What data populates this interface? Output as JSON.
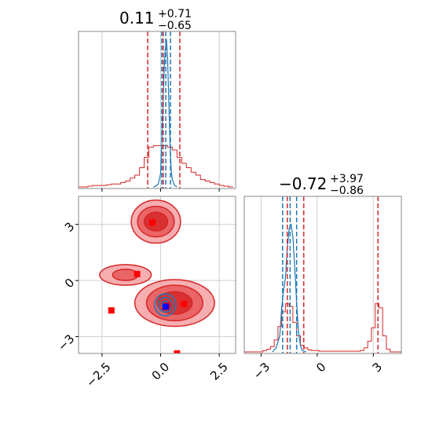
{
  "chart_data": {
    "type": "corner",
    "parameters": [
      "x",
      "y"
    ],
    "colors": {
      "red": "#d62728",
      "blue": "#1f77b4",
      "marker_red": "#ff0000",
      "marker_blue": "#0000ff",
      "grid": "#cfcfcf"
    },
    "grid": true,
    "x_range": [
      -3.5,
      3.2
    ],
    "y_range": [
      -3.9,
      4.5
    ],
    "x_ticks": [
      {
        "value": -2.5,
        "label": "−2.5"
      },
      {
        "value": 0.0,
        "label": "0.0"
      },
      {
        "value": 2.5,
        "label": "2.5"
      }
    ],
    "y_ticks": [
      {
        "value": -3,
        "label": "−3"
      },
      {
        "value": 0,
        "label": "0"
      },
      {
        "value": 3,
        "label": "3"
      }
    ],
    "marginal_x": {
      "title_main": "0.11",
      "title_sup": "+0.71",
      "title_sub": "−0.65",
      "red_quantile_lines": [
        -0.55,
        0.11,
        0.82
      ],
      "blue_quantile_lines": [
        0.05,
        0.22,
        0.42
      ],
      "red_hist_centers": [
        -3.4,
        -3.2,
        -3.0,
        -2.8,
        -2.6,
        -2.4,
        -2.2,
        -2.0,
        -1.8,
        -1.6,
        -1.4,
        -1.2,
        -1.0,
        -0.8,
        -0.6,
        -0.4,
        -0.2,
        0.0,
        0.2,
        0.4,
        0.6,
        0.8,
        1.0,
        1.2,
        1.4,
        1.6,
        1.8,
        2.0,
        2.2,
        2.4,
        2.6,
        2.8,
        3.0
      ],
      "red_hist_heights": [
        0,
        0,
        0.005,
        0.01,
        0.01,
        0.01,
        0.015,
        0.02,
        0.02,
        0.03,
        0.04,
        0.06,
        0.08,
        0.13,
        0.2,
        0.27,
        0.28,
        0.28,
        0.28,
        0.27,
        0.25,
        0.2,
        0.16,
        0.13,
        0.1,
        0.08,
        0.05,
        0.04,
        0.03,
        0.02,
        0.01,
        0.005,
        0
      ],
      "blue_x": [
        -0.3,
        -0.2,
        -0.1,
        0.0,
        0.05,
        0.1,
        0.15,
        0.2,
        0.25,
        0.3,
        0.35,
        0.4,
        0.45,
        0.5,
        0.6,
        0.7
      ],
      "blue_y": [
        0,
        0.005,
        0.02,
        0.09,
        0.3,
        0.55,
        0.8,
        0.93,
        1.0,
        0.86,
        0.58,
        0.3,
        0.12,
        0.05,
        0.01,
        0
      ]
    },
    "marginal_y": {
      "title_main": "−0.72",
      "title_sup": "+3.97",
      "title_sub": "−0.86",
      "red_quantile_lines": [
        -1.6,
        -0.72,
        3.25
      ],
      "blue_quantile_lines": [
        -1.85,
        -1.45,
        -1.1
      ],
      "red_hist_centers": [
        -3.8,
        -3.6,
        -3.4,
        -3.2,
        -3.0,
        -2.8,
        -2.6,
        -2.4,
        -2.2,
        -2.0,
        -1.8,
        -1.6,
        -1.4,
        -1.2,
        -1.0,
        -0.8,
        -0.6,
        -0.4,
        -0.2,
        0.0,
        0.2,
        0.4,
        0.6,
        0.8,
        1.0,
        1.2,
        1.4,
        1.6,
        1.8,
        2.0,
        2.2,
        2.4,
        2.6,
        2.8,
        3.0,
        3.2,
        3.4,
        3.6,
        3.8,
        4.0,
        4.2,
        4.4
      ],
      "red_hist_heights": [
        0,
        0,
        0,
        0,
        0,
        0.01,
        0.02,
        0.04,
        0.09,
        0.19,
        0.3,
        0.36,
        0.34,
        0.22,
        0.12,
        0.05,
        0.03,
        0.015,
        0.01,
        0.01,
        0.005,
        0.005,
        0.005,
        0.005,
        0.005,
        0.005,
        0.005,
        0.005,
        0.005,
        0.005,
        0.005,
        0.01,
        0.03,
        0.08,
        0.18,
        0.36,
        0.33,
        0.12,
        0.02,
        0,
        0,
        0
      ],
      "blue_x": [
        -2.4,
        -2.2,
        -2.0,
        -1.9,
        -1.8,
        -1.7,
        -1.6,
        -1.5,
        -1.4,
        -1.3,
        -1.2,
        -1.1,
        -1.0,
        -0.9,
        -0.8,
        -0.6
      ],
      "blue_y": [
        0,
        0.03,
        0.12,
        0.33,
        0.46,
        0.55,
        0.78,
        0.92,
        0.96,
        0.86,
        0.63,
        0.37,
        0.15,
        0.05,
        0.01,
        0
      ]
    },
    "joint": {
      "red_modes": [
        {
          "cx": -0.2,
          "cy": 3.15,
          "rx": [
            1.05,
            0.78,
            0.5
          ],
          "ry": [
            1.15,
            0.82,
            0.5
          ]
        },
        {
          "cx": 0.6,
          "cy": -1.2,
          "rx": [
            1.7,
            1.2,
            0.75
          ],
          "ry": [
            1.25,
            0.95,
            0.6
          ]
        },
        {
          "cx": -1.5,
          "cy": 0.3,
          "rx": [
            1.1,
            0.55,
            0.0
          ],
          "ry": [
            0.55,
            0.3,
            0.0
          ]
        }
      ],
      "blue_contours": [
        {
          "cx": 0.2,
          "cy": -1.3,
          "r": 0.45
        },
        {
          "cx": 0.2,
          "cy": -1.3,
          "r": 0.3
        },
        {
          "cx": 0.2,
          "cy": -1.3,
          "r": 0.15
        }
      ],
      "red_markers": [
        {
          "x": -0.35,
          "y": 3.1
        },
        {
          "x": -1.0,
          "y": 0.35
        },
        {
          "x": 1.0,
          "y": -1.25
        },
        {
          "x": -2.1,
          "y": -1.6
        },
        {
          "x": 0.7,
          "y": -3.9
        },
        {
          "x": 0.3,
          "y": -1.35
        }
      ],
      "blue_marker": {
        "x": 0.22,
        "y": -1.4
      }
    }
  }
}
